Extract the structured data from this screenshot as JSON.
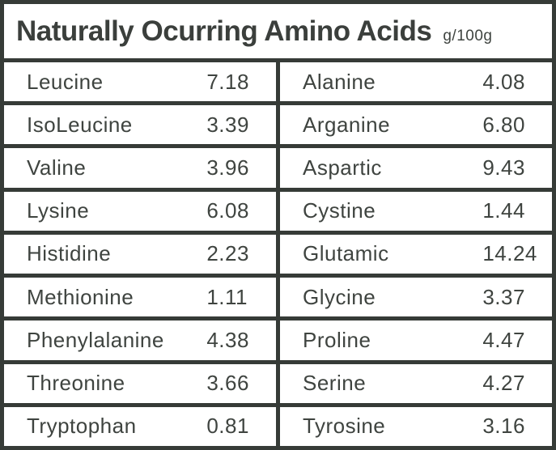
{
  "title": "Naturally Ocurring Amino Acids",
  "unit_label": "g/100g",
  "colors": {
    "border": "#363b37",
    "text": "#3f4440",
    "titletext": "#3b3f3c",
    "cellbg": "#ffffff"
  },
  "chart_data": {
    "type": "table",
    "title": "Naturally Ocurring Amino Acids",
    "unit": "g/100g",
    "layout": "two side-by-side name/value columns, 9 rows each, dark grid borders, white cells",
    "left_rows": [
      {
        "name": "Leucine",
        "value": "7.18"
      },
      {
        "name": "IsoLeucine",
        "value": "3.39"
      },
      {
        "name": "Valine",
        "value": "3.96"
      },
      {
        "name": "Lysine",
        "value": "6.08"
      },
      {
        "name": "Histidine",
        "value": "2.23"
      },
      {
        "name": "Methionine",
        "value": "1.11"
      },
      {
        "name": "Phenylalanine",
        "value": "4.38"
      },
      {
        "name": "Threonine",
        "value": "3.66"
      },
      {
        "name": "Tryptophan",
        "value": "0.81"
      }
    ],
    "right_rows": [
      {
        "name": "Alanine",
        "value": "4.08"
      },
      {
        "name": "Arganine",
        "value": "6.80"
      },
      {
        "name": "Aspartic",
        "value": "9.43"
      },
      {
        "name": "Cystine",
        "value": "1.44"
      },
      {
        "name": "Glutamic",
        "value": "14.24"
      },
      {
        "name": "Glycine",
        "value": "3.37"
      },
      {
        "name": "Proline",
        "value": "4.47"
      },
      {
        "name": "Serine",
        "value": "4.27"
      },
      {
        "name": "Tyrosine",
        "value": "3.16"
      }
    ]
  }
}
